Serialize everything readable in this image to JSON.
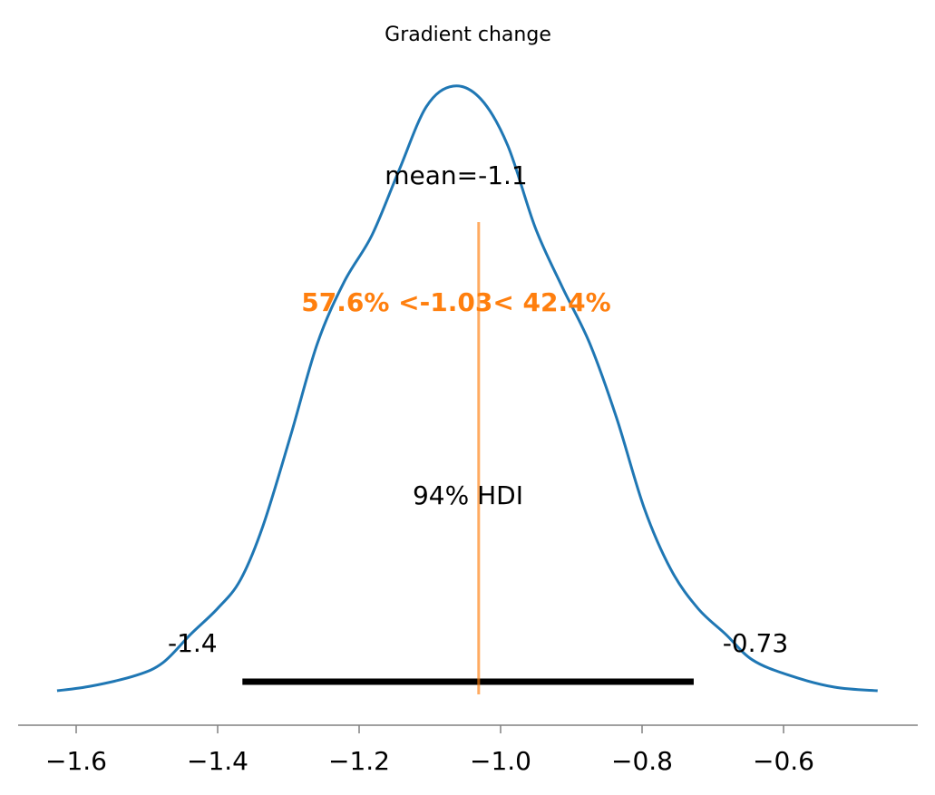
{
  "chart_data": {
    "type": "line",
    "title": "Gradient change",
    "xlabel": "",
    "ylabel": "",
    "xlim": [
      -1.68,
      -0.44
    ],
    "ylim": [
      -0.134,
      2.47
    ],
    "grid": false,
    "xticks": [
      -1.6,
      -1.4,
      -1.2,
      -1.0,
      -0.8,
      -0.6
    ],
    "xtick_labels": [
      "−1.6",
      "−1.4",
      "−1.2",
      "−1.0",
      "−0.8",
      "−0.6"
    ],
    "series_color": "#1f77b4",
    "x": [
      -1.627,
      -1.579,
      -1.515,
      -1.477,
      -1.438,
      -1.4,
      -1.368,
      -1.336,
      -1.297,
      -1.259,
      -1.221,
      -1.182,
      -1.144,
      -1.105,
      -1.067,
      -1.028,
      -0.99,
      -0.951,
      -0.913,
      -0.874,
      -0.836,
      -0.797,
      -0.759,
      -0.721,
      -0.682,
      -0.644,
      -0.592,
      -0.528,
      -0.467
    ],
    "y": [
      0,
      0.018,
      0.06,
      0.11,
      0.22,
      0.32,
      0.43,
      0.64,
      0.99,
      1.35,
      1.59,
      1.77,
      2.02,
      2.27,
      2.35,
      2.3,
      2.12,
      1.8,
      1.57,
      1.35,
      1.06,
      0.71,
      0.47,
      0.32,
      0.22,
      0.12,
      0.06,
      0.014,
      0
    ],
    "mean_label": "mean=-1.1",
    "mean_value": -1.1,
    "hdi": {
      "label": "94% HDI",
      "low": -1.365,
      "high": -0.727,
      "low_label": "-1.4",
      "high_label": "-0.73",
      "color": "#000000"
    },
    "reference": {
      "value": -1.031,
      "label": "57.6% <-1.03< 42.4%",
      "color": "#ff7f0e"
    }
  }
}
